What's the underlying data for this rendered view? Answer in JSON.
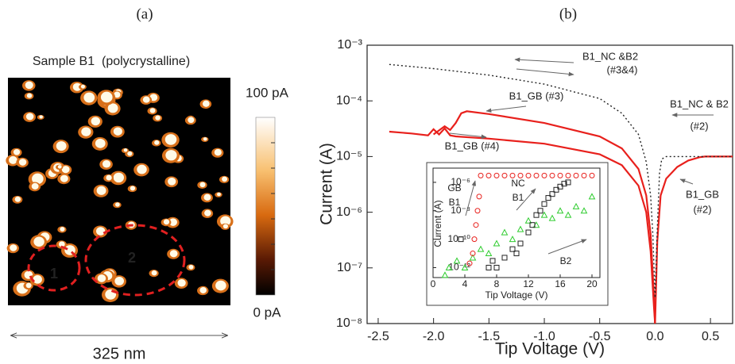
{
  "chart_data": [
    {
      "type": "image",
      "label": "(a)",
      "title": "Sample B1  (polycrystalline)",
      "colorbar": {
        "clim": [
          0,
          100
        ],
        "ticks": [
          {
            "value": 100,
            "label": "100 pA"
          },
          {
            "value": 0,
            "label": "0 pA"
          }
        ]
      },
      "scale_label": "325 nm",
      "regions": [
        "1",
        "2"
      ],
      "region_color": "#e02020"
    },
    {
      "type": "line",
      "label": "(b)",
      "xlabel": "Tip Voltage (V)",
      "ylabel": "Current (A)",
      "xlim": [
        -2.6,
        0.7
      ],
      "ylim": [
        1e-08,
        0.001
      ],
      "ylog": true,
      "xticks": [
        -2.5,
        {
          "value": -2,
          "label": "-2.0"
        },
        -1.5,
        {
          "value": -1,
          "label": "-1.0"
        },
        -0.5,
        {
          "value": 0,
          "label": "0.0"
        },
        0.5
      ],
      "yticks": [
        {
          "value": 1e-08,
          "label": "10⁻⁸"
        },
        {
          "value": 1e-07,
          "label": "10⁻⁷"
        },
        {
          "value": 1e-06,
          "label": "10⁻⁶"
        },
        {
          "value": 1e-05,
          "label": "10⁻⁵"
        },
        {
          "value": 0.0001,
          "label": "10⁻⁴"
        },
        {
          "value": 0.001,
          "label": "10⁻³"
        }
      ],
      "series": [
        {
          "color": "#e8201c",
          "linestyle": "solid",
          "x": [
            -2.4,
            -2.2,
            -2.05,
            -2.0,
            -1.95,
            -1.9,
            -1.85,
            -1.8,
            -1.5,
            -1.0,
            -0.5,
            -0.3,
            -0.15,
            -0.08,
            -0.04,
            -0.01,
            0
          ],
          "values": [
            2.8e-05,
            2.6e-05,
            2.4e-05,
            3.1e-05,
            2.5e-05,
            3.2e-05,
            2.4e-05,
            2.3e-05,
            2.1e-05,
            1.7e-05,
            1.1e-05,
            7e-06,
            3e-06,
            1e-06,
            2e-07,
            2e-08,
            1e-08
          ]
        },
        {
          "color": "#e8201c",
          "linestyle": "solid",
          "x": [
            -2.0,
            -1.9,
            -1.85,
            -1.8,
            -1.75,
            -1.7,
            -1.5,
            -1.0,
            -0.5,
            -0.3,
            -0.15,
            -0.08,
            -0.04,
            -0.01,
            0
          ],
          "values": [
            2.5e-05,
            3.5e-05,
            3e-05,
            4e-05,
            6e-05,
            6.5e-05,
            5.8e-05,
            4e-05,
            2.3e-05,
            1.4e-05,
            6e-06,
            2e-06,
            4e-07,
            3e-08,
            1e-08
          ]
        },
        {
          "color": "#e8201c",
          "linestyle": "solid",
          "x": [
            0,
            0.02,
            0.05,
            0.1,
            0.2,
            0.3,
            0.4,
            0.45,
            0.7
          ],
          "values": [
            1e-08,
            3e-07,
            2e-06,
            4e-06,
            6.5e-06,
            8.5e-06,
            9.7e-06,
            1e-05,
            1e-05
          ]
        },
        {
          "color": "#222222",
          "linestyle": "dotted",
          "x": [
            -2.4,
            -2.0,
            -1.5,
            -1.0,
            -0.5,
            -0.3,
            -0.15,
            -0.08,
            -0.04,
            -0.02,
            0
          ],
          "values": [
            0.00045,
            0.00038,
            0.00029,
            0.0002,
            0.00011,
            6e-05,
            2.5e-05,
            8e-06,
            2e-06,
            4e-07,
            3e-08
          ]
        },
        {
          "color": "#222222",
          "linestyle": "dotted",
          "x": [
            0,
            0.02,
            0.04,
            0.06,
            0.1,
            0.7
          ],
          "values": [
            3e-08,
            5e-07,
            5e-06,
            9e-06,
            1e-05,
            1e-05
          ]
        }
      ],
      "annotations": [
        "B1_NC &B2",
        "(#3&4)",
        "B1_GB (#3)",
        "B1_NC & B2",
        "(#2)",
        "B1_GB",
        "(#2)",
        "B1_GB (#4)"
      ]
    },
    {
      "type": "scatter",
      "xlabel": "Tip Voltage (V)",
      "ylabel": "Current (A)",
      "xlim": [
        0,
        21
      ],
      "ylim": [
        2e-13,
        1e-05
      ],
      "ylog": true,
      "xticks": [
        0,
        4,
        8,
        12,
        16,
        20
      ],
      "yticks": [
        {
          "value": 1e-12,
          "label": "10⁻¹²"
        },
        {
          "value": 1e-10,
          "label": "10⁻¹⁰"
        },
        {
          "value": 1e-08,
          "label": "10⁻⁸"
        },
        {
          "value": 1e-06,
          "label": "10⁻⁶"
        }
      ],
      "series": [
        {
          "color": "#2ecc2e",
          "marker": "triangle",
          "x": [
            1.5,
            2,
            3,
            4,
            5,
            6,
            7,
            8,
            9,
            10,
            11,
            12,
            13,
            14,
            15,
            16,
            17,
            18,
            19,
            20
          ],
          "values": [
            3e-13,
            1e-12,
            3e-12,
            1e-12,
            5e-12,
            2e-11,
            1e-11,
            5e-11,
            3e-10,
            1e-10,
            5e-10,
            2e-09,
            1e-09,
            5e-09,
            3e-09,
            1e-08,
            5e-09,
            2e-08,
            1e-08,
            1e-07
          ]
        },
        {
          "color": "#222222",
          "marker": "square",
          "x": [
            3.5,
            7,
            7.5,
            8,
            9,
            10,
            10.5,
            11,
            12,
            12.5,
            13,
            13.5,
            14,
            14.5,
            15,
            15.5,
            16,
            16.5,
            17
          ],
          "values": [
            1e-10,
            1e-12,
            3e-12,
            1e-12,
            5e-12,
            2e-11,
            1e-11,
            5e-11,
            3e-10,
            1e-09,
            5e-09,
            1e-08,
            3e-08,
            8e-08,
            1.5e-07,
            3e-07,
            5e-07,
            8e-07,
            1e-06
          ]
        },
        {
          "color": "#e8201c",
          "marker": "circle",
          "x": [
            4.6,
            5,
            5.2,
            5.4,
            5.6,
            5.8,
            6,
            7,
            8,
            9,
            10,
            11,
            12,
            13,
            14,
            15,
            16,
            17,
            18,
            19,
            20
          ],
          "values": [
            2e-12,
            1e-11,
            1e-10,
            1e-09,
            1e-08,
            1e-07,
            3e-06,
            3e-06,
            3e-06,
            3e-06,
            3e-06,
            3e-06,
            3e-06,
            3e-06,
            3e-06,
            3e-06,
            3e-06,
            3e-06,
            3e-06,
            3e-06,
            3e-06
          ]
        }
      ],
      "annotations": [
        "GB",
        "B1",
        "NC",
        "B1",
        "B2"
      ]
    }
  ]
}
